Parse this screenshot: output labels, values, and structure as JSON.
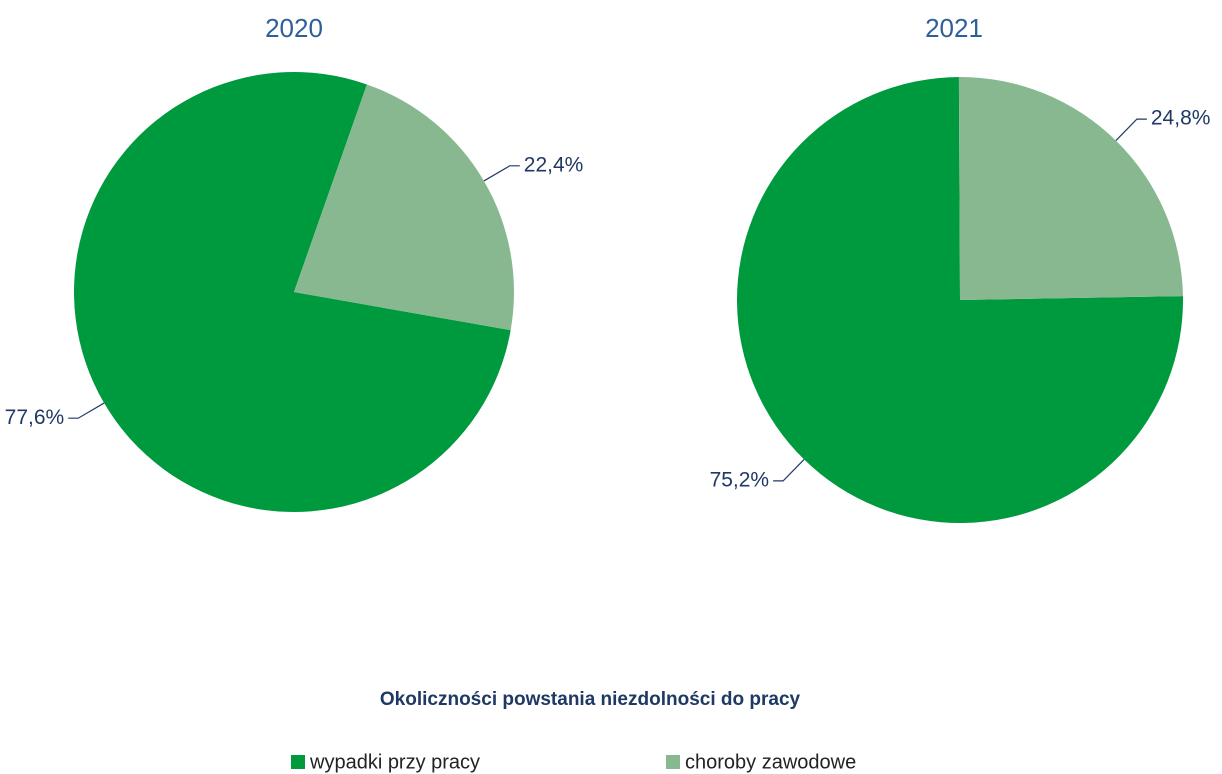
{
  "chart_data": [
    {
      "type": "pie",
      "title": "2020",
      "values": [
        77.6,
        22.4
      ],
      "value_labels": [
        "77,6%",
        "22,4%"
      ],
      "start_angle": 100
    },
    {
      "type": "pie",
      "title": "2021",
      "values": [
        75.2,
        24.8
      ],
      "value_labels": [
        "75,2%",
        "24,8%"
      ],
      "start_angle": 89
    }
  ],
  "legend": {
    "title": "Okoliczności powstania niezdolności do pracy",
    "categories": [
      "wypadki przy pracy",
      "choroby zawodowe"
    ],
    "colors": [
      "#009a3e",
      "#88b890"
    ]
  }
}
